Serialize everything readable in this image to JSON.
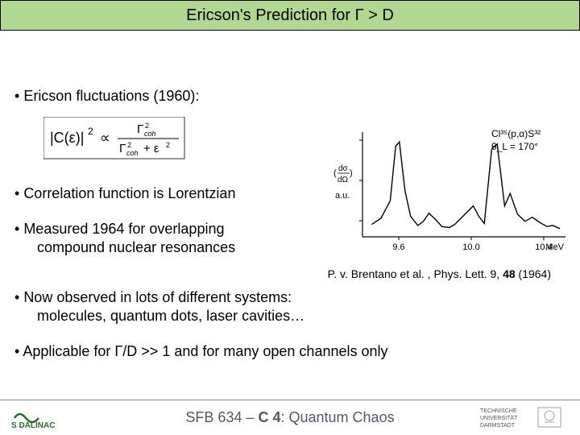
{
  "title": "Ericson's Prediction for Γ > D",
  "bullets": {
    "b1": "Ericson fluctuations (1960):",
    "b2": "Correlation function is Lorentzian",
    "b3": "Measured 1964 for overlapping",
    "b3_line2": "compound nuclear resonances",
    "b4": "Now observed in lots of different systems:",
    "b4_line2": "molecules, quantum dots, laser cavities…",
    "b5": "Applicable for Γ/D >> 1 and for many open channels only"
  },
  "formula": {
    "lhs": "|C(ε)|²",
    "prop": "∝",
    "num": "Γ²_coh",
    "den": "Γ²_coh + ε²"
  },
  "citation": {
    "text_prefix": "P. v. Brentano et al. , Phys. Lett. 9, ",
    "bold": "48",
    "text_suffix": " (1964)"
  },
  "footer": {
    "center_prefix": "SFB 634 – ",
    "center_bold": "C 4",
    "center_suffix": ": Quantum Chaos",
    "left_logo": "S DALINAC",
    "right_logo_l1": "TECHNISCHE",
    "right_logo_l2": "UNIVERSITÄT",
    "right_logo_l3": "DARMSTADT"
  },
  "chart": {
    "type": "line",
    "annot_l1": "Cl³⁵(p,α)S³²",
    "annot_l2": "θ_L = 170°",
    "ylabel": "(dσ/dΩ) a.u.",
    "xlabel": "MeV",
    "xticks": [
      "9.6",
      "10.0",
      "10.4"
    ],
    "xlim": [
      9.4,
      10.5
    ],
    "ylim": [
      0,
      10
    ],
    "x": [
      9.45,
      9.5,
      9.55,
      9.58,
      9.6,
      9.63,
      9.66,
      9.7,
      9.73,
      9.76,
      9.8,
      9.83,
      9.87,
      9.9,
      9.95,
      10.0,
      10.03,
      10.06,
      10.1,
      10.13,
      10.17,
      10.2,
      10.24,
      10.28,
      10.32,
      10.36,
      10.4,
      10.43,
      10.47
    ],
    "y": [
      1.2,
      1.8,
      3.5,
      8.8,
      9.2,
      4.5,
      2.0,
      1.1,
      1.5,
      2.3,
      1.6,
      1.0,
      0.9,
      1.2,
      2.1,
      3.0,
      2.0,
      1.3,
      8.5,
      9.0,
      3.0,
      4.2,
      2.2,
      1.5,
      1.9,
      1.4,
      1.0,
      1.1,
      0.8
    ],
    "line_color": "#000000",
    "background_color": "#ffffff",
    "axis_color": "#000000",
    "line_width": 1.4,
    "tick_fontsize": 11,
    "annot_fontsize": 12
  },
  "colors": {
    "title_bg": "#b0d890",
    "footer_text": "#555570"
  }
}
